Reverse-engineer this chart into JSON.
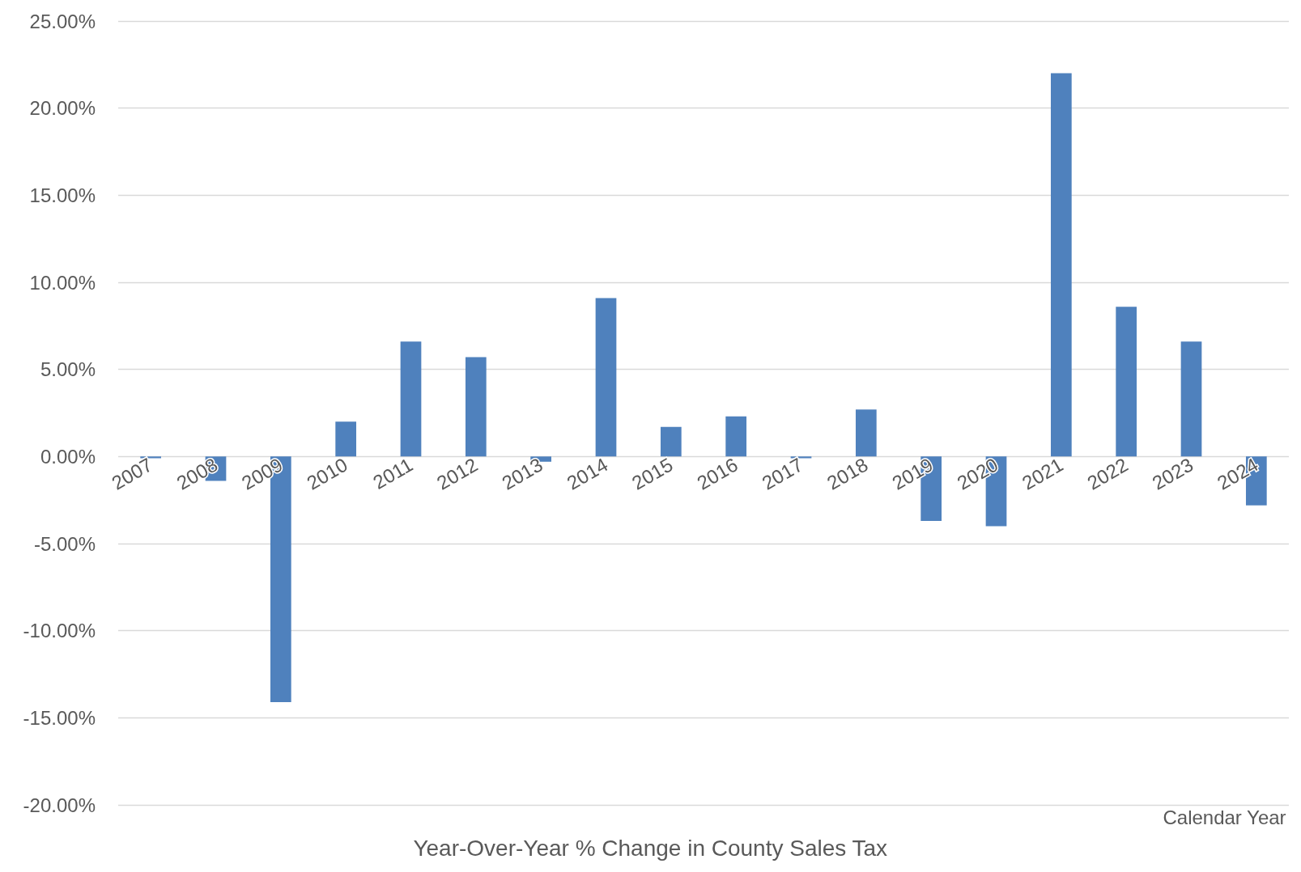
{
  "chart_data": {
    "type": "bar",
    "title": "Year-Over-Year % Change in County Sales Tax",
    "xlabel": "Calendar Year",
    "categories": [
      "2007",
      "2008",
      "2009",
      "2010",
      "2011",
      "2012",
      "2013",
      "2014",
      "2015",
      "2016",
      "2017",
      "2018",
      "2019",
      "2020",
      "2021",
      "2022",
      "2023",
      "2024"
    ],
    "values": [
      -0.1,
      -1.4,
      -14.1,
      2.0,
      6.6,
      5.7,
      -0.3,
      9.1,
      1.7,
      2.3,
      -0.1,
      2.7,
      -3.7,
      -4.0,
      22.0,
      8.6,
      6.6,
      -2.8
    ],
    "color": "#4f81bd",
    "ylim": [
      -20,
      25
    ],
    "yticks": [
      {
        "value": -20,
        "label": "-20.00%"
      },
      {
        "value": -15,
        "label": "-15.00%"
      },
      {
        "value": -10,
        "label": "-10.00%"
      },
      {
        "value": -5,
        "label": "-5.00%"
      },
      {
        "value": 0,
        "label": "0.00%"
      },
      {
        "value": 5,
        "label": "5.00%"
      },
      {
        "value": 10,
        "label": "10.00%"
      },
      {
        "value": 15,
        "label": "15.00%"
      },
      {
        "value": 20,
        "label": "20.00%"
      },
      {
        "value": 25,
        "label": "25.00%"
      }
    ],
    "grid": "y"
  }
}
